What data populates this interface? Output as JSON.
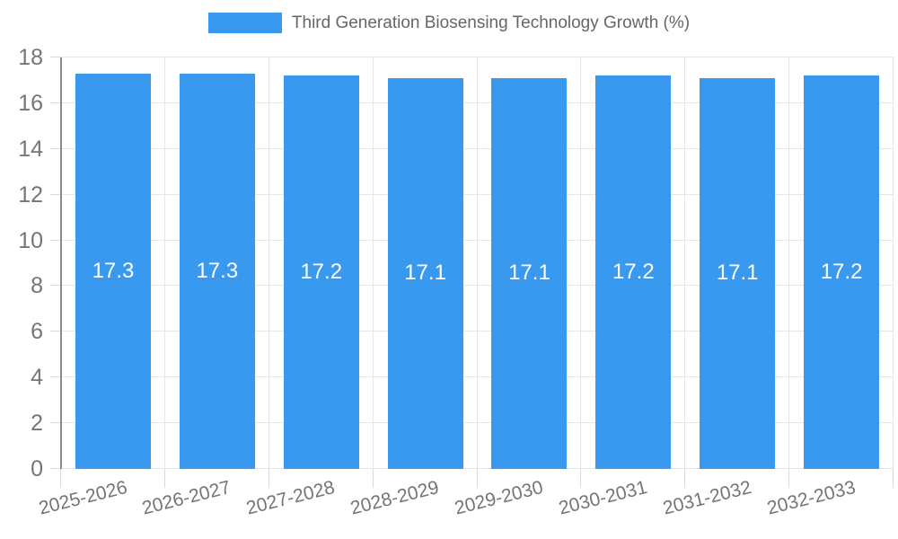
{
  "chart_data": {
    "type": "bar",
    "title": "Third Generation Biosensing Technology Growth (%)",
    "categories": [
      "2025-2026",
      "2026-2027",
      "2027-2028",
      "2028-2029",
      "2029-2030",
      "2030-2031",
      "2031-2032",
      "2032-2033"
    ],
    "values": [
      17.3,
      17.3,
      17.2,
      17.1,
      17.1,
      17.2,
      17.1,
      17.2
    ],
    "xlabel": "",
    "ylabel": "",
    "ylim": [
      0,
      18
    ],
    "ytick_step": 2,
    "ytick_labels": [
      "0",
      "2",
      "4",
      "6",
      "8",
      "10",
      "12",
      "14",
      "16",
      "18"
    ],
    "grid": true,
    "legend_position": "top",
    "value_labels_inside_bars": true,
    "colors": {
      "bar": "#3999ee",
      "bar_label": "#ffffff",
      "legend_text": "#666666",
      "axis_text": "#757575",
      "gridline": "#e6e6e6",
      "tick": "#d9d9d9",
      "axis_line": "#8b8b8b",
      "background": "#ffffff"
    }
  }
}
